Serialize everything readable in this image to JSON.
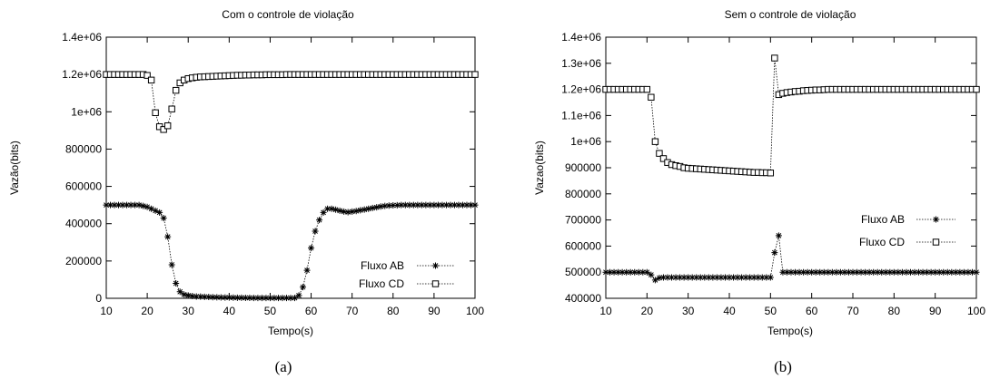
{
  "chart_data": [
    {
      "type": "line",
      "title": "Com o controle de violação",
      "xlabel": "Tempo(s)",
      "ylabel": "Vazão(bits)",
      "caption": "(a)",
      "xlim": [
        10,
        100
      ],
      "ylim": [
        0,
        1400000
      ],
      "xticks": [
        10,
        20,
        30,
        40,
        50,
        60,
        70,
        80,
        90,
        100
      ],
      "xtick_labels": [
        "10",
        "20",
        "30",
        "40",
        "50",
        "60",
        "70",
        "80",
        "90",
        "100"
      ],
      "yticks": [
        0,
        200000,
        400000,
        600000,
        800000,
        1000000,
        1200000,
        1400000
      ],
      "ytick_labels": [
        "0",
        "200000",
        "400000",
        "600000",
        "800000",
        "1e+06",
        "1.2e+06",
        "1.4e+06"
      ],
      "grid": false,
      "legend_position": "bottom-right",
      "series": [
        {
          "name": "Fluxo AB",
          "marker": "asterisk",
          "x": [
            10,
            11,
            12,
            13,
            14,
            15,
            16,
            17,
            18,
            19,
            20,
            21,
            22,
            23,
            24,
            25,
            26,
            27,
            28,
            29,
            30,
            31,
            32,
            33,
            34,
            35,
            36,
            37,
            38,
            39,
            40,
            41,
            42,
            43,
            44,
            45,
            46,
            47,
            48,
            49,
            50,
            51,
            52,
            53,
            54,
            55,
            56,
            57,
            58,
            59,
            60,
            61,
            62,
            63,
            64,
            65,
            66,
            67,
            68,
            69,
            70,
            71,
            72,
            73,
            74,
            75,
            76,
            77,
            78,
            79,
            80,
            81,
            82,
            83,
            84,
            85,
            86,
            87,
            88,
            89,
            90,
            91,
            92,
            93,
            94,
            95,
            96,
            97,
            98,
            99,
            100
          ],
          "y": [
            500000,
            500000,
            500000,
            500000,
            500000,
            500000,
            500000,
            500000,
            500000,
            495000,
            490000,
            480000,
            470000,
            460000,
            430000,
            330000,
            180000,
            80000,
            35000,
            20000,
            15000,
            12000,
            10000,
            9000,
            8000,
            7000,
            6000,
            5500,
            5000,
            4500,
            4000,
            3500,
            3000,
            3000,
            2500,
            2500,
            2000,
            2000,
            2000,
            2000,
            2000,
            2000,
            2000,
            2000,
            2000,
            2000,
            2000,
            15000,
            60000,
            150000,
            270000,
            360000,
            420000,
            460000,
            480000,
            480000,
            475000,
            470000,
            465000,
            462000,
            465000,
            468000,
            472000,
            476000,
            480000,
            484000,
            488000,
            492000,
            495000,
            497000,
            498000,
            499000,
            500000,
            500000,
            500000,
            500000,
            500000,
            500000,
            500000,
            500000,
            500000,
            500000,
            500000,
            500000,
            500000,
            500000,
            500000,
            500000,
            500000,
            500000,
            500000
          ]
        },
        {
          "name": "Fluxo CD",
          "marker": "square",
          "x": [
            10,
            11,
            12,
            13,
            14,
            15,
            16,
            17,
            18,
            19,
            20,
            21,
            22,
            23,
            24,
            25,
            26,
            27,
            28,
            29,
            30,
            31,
            32,
            33,
            34,
            35,
            36,
            37,
            38,
            39,
            40,
            41,
            42,
            43,
            44,
            45,
            46,
            47,
            48,
            49,
            50,
            51,
            52,
            53,
            54,
            55,
            56,
            57,
            58,
            59,
            60,
            61,
            62,
            63,
            64,
            65,
            66,
            67,
            68,
            69,
            70,
            71,
            72,
            73,
            74,
            75,
            76,
            77,
            78,
            79,
            80,
            81,
            82,
            83,
            84,
            85,
            86,
            87,
            88,
            89,
            90,
            91,
            92,
            93,
            94,
            95,
            96,
            97,
            98,
            99,
            100
          ],
          "y": [
            1200000,
            1200000,
            1200000,
            1200000,
            1200000,
            1200000,
            1200000,
            1200000,
            1200000,
            1200000,
            1195000,
            1170000,
            995000,
            920000,
            905000,
            925000,
            1015000,
            1115000,
            1155000,
            1170000,
            1178000,
            1182000,
            1185000,
            1187000,
            1188000,
            1189000,
            1190000,
            1191000,
            1192000,
            1193000,
            1194000,
            1195000,
            1196000,
            1196000,
            1197000,
            1197000,
            1198000,
            1198000,
            1198000,
            1199000,
            1199000,
            1199000,
            1199000,
            1199000,
            1200000,
            1200000,
            1200000,
            1200000,
            1200000,
            1200000,
            1200000,
            1200000,
            1200000,
            1200000,
            1200000,
            1200000,
            1200000,
            1200000,
            1200000,
            1200000,
            1200000,
            1200000,
            1200000,
            1200000,
            1200000,
            1200000,
            1200000,
            1200000,
            1200000,
            1200000,
            1200000,
            1200000,
            1200000,
            1200000,
            1200000,
            1200000,
            1200000,
            1200000,
            1200000,
            1200000,
            1200000,
            1200000,
            1200000,
            1200000,
            1200000,
            1200000,
            1200000,
            1200000,
            1200000,
            1200000,
            1200000
          ]
        }
      ]
    },
    {
      "type": "line",
      "title": "Sem o controle de violação",
      "xlabel": "Tempo(s)",
      "ylabel": "Vazao(bits)",
      "caption": "(b)",
      "xlim": [
        10,
        100
      ],
      "ylim": [
        400000,
        1400000
      ],
      "xticks": [
        10,
        20,
        30,
        40,
        50,
        60,
        70,
        80,
        90,
        100
      ],
      "xtick_labels": [
        "10",
        "20",
        "30",
        "40",
        "50",
        "60",
        "70",
        "80",
        "90",
        "100"
      ],
      "yticks": [
        400000,
        500000,
        600000,
        700000,
        800000,
        900000,
        1000000,
        1100000,
        1200000,
        1300000,
        1400000
      ],
      "ytick_labels": [
        "400000",
        "500000",
        "600000",
        "700000",
        "800000",
        "900000",
        "1e+06",
        "1.1e+06",
        "1.2e+06",
        "1.3e+06",
        "1.4e+06"
      ],
      "grid": false,
      "legend_position": "center-right",
      "series": [
        {
          "name": "Fluxo AB",
          "marker": "asterisk",
          "x": [
            10,
            11,
            12,
            13,
            14,
            15,
            16,
            17,
            18,
            19,
            20,
            21,
            22,
            23,
            24,
            25,
            26,
            27,
            28,
            29,
            30,
            31,
            32,
            33,
            34,
            35,
            36,
            37,
            38,
            39,
            40,
            41,
            42,
            43,
            44,
            45,
            46,
            47,
            48,
            49,
            50,
            51,
            52,
            53,
            54,
            55,
            56,
            57,
            58,
            59,
            60,
            61,
            62,
            63,
            64,
            65,
            66,
            67,
            68,
            69,
            70,
            71,
            72,
            73,
            74,
            75,
            76,
            77,
            78,
            79,
            80,
            81,
            82,
            83,
            84,
            85,
            86,
            87,
            88,
            89,
            90,
            91,
            92,
            93,
            94,
            95,
            96,
            97,
            98,
            99,
            100
          ],
          "y": [
            500000,
            500000,
            500000,
            500000,
            500000,
            500000,
            500000,
            500000,
            500000,
            500000,
            500000,
            490000,
            470000,
            478000,
            480000,
            480000,
            480000,
            480000,
            480000,
            480000,
            480000,
            480000,
            480000,
            480000,
            480000,
            480000,
            480000,
            480000,
            480000,
            480000,
            480000,
            480000,
            480000,
            480000,
            480000,
            480000,
            480000,
            480000,
            480000,
            480000,
            480000,
            575000,
            640000,
            500000,
            500000,
            500000,
            500000,
            500000,
            500000,
            500000,
            500000,
            500000,
            500000,
            500000,
            500000,
            500000,
            500000,
            500000,
            500000,
            500000,
            500000,
            500000,
            500000,
            500000,
            500000,
            500000,
            500000,
            500000,
            500000,
            500000,
            500000,
            500000,
            500000,
            500000,
            500000,
            500000,
            500000,
            500000,
            500000,
            500000,
            500000,
            500000,
            500000,
            500000,
            500000,
            500000,
            500000,
            500000,
            500000,
            500000,
            500000
          ]
        },
        {
          "name": "Fluxo CD",
          "marker": "square",
          "x": [
            10,
            11,
            12,
            13,
            14,
            15,
            16,
            17,
            18,
            19,
            20,
            21,
            22,
            23,
            24,
            25,
            26,
            27,
            28,
            29,
            30,
            31,
            32,
            33,
            34,
            35,
            36,
            37,
            38,
            39,
            40,
            41,
            42,
            43,
            44,
            45,
            46,
            47,
            48,
            49,
            50,
            51,
            52,
            53,
            54,
            55,
            56,
            57,
            58,
            59,
            60,
            61,
            62,
            63,
            64,
            65,
            66,
            67,
            68,
            69,
            70,
            71,
            72,
            73,
            74,
            75,
            76,
            77,
            78,
            79,
            80,
            81,
            82,
            83,
            84,
            85,
            86,
            87,
            88,
            89,
            90,
            91,
            92,
            93,
            94,
            95,
            96,
            97,
            98,
            99,
            100
          ],
          "y": [
            1200000,
            1200000,
            1200000,
            1200000,
            1200000,
            1200000,
            1200000,
            1200000,
            1200000,
            1200000,
            1200000,
            1170000,
            1000000,
            955000,
            935000,
            920000,
            912000,
            908000,
            905000,
            900000,
            898000,
            897000,
            896000,
            895000,
            894000,
            893000,
            892000,
            891000,
            890000,
            889000,
            888000,
            887000,
            886000,
            885000,
            884000,
            883000,
            882000,
            882000,
            881000,
            881000,
            880000,
            1320000,
            1180000,
            1185000,
            1188000,
            1190000,
            1192000,
            1193000,
            1195000,
            1196000,
            1197000,
            1198000,
            1198000,
            1199000,
            1200000,
            1200000,
            1200000,
            1200000,
            1200000,
            1200000,
            1200000,
            1200000,
            1200000,
            1200000,
            1200000,
            1200000,
            1200000,
            1200000,
            1200000,
            1200000,
            1200000,
            1200000,
            1200000,
            1200000,
            1200000,
            1200000,
            1200000,
            1200000,
            1200000,
            1200000,
            1200000,
            1200000,
            1200000,
            1200000,
            1200000,
            1200000,
            1200000,
            1200000,
            1200000,
            1200000,
            1200000
          ]
        }
      ]
    }
  ]
}
